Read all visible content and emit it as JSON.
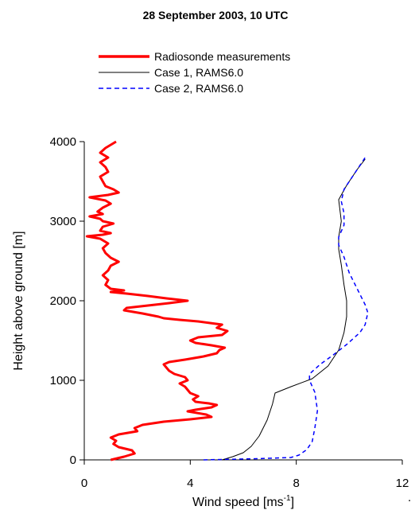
{
  "chart_data": {
    "type": "line",
    "title": "28 September 2003, 10 UTC",
    "xlabel": "Wind speed [ms",
    "xlabel_sup": "-1",
    "xlabel_end": "]",
    "ylabel": "Height above ground [m]",
    "xlim": [
      0,
      12
    ],
    "ylim": [
      0,
      4000
    ],
    "x_ticks": [
      "0",
      "4",
      "8",
      "12"
    ],
    "y_ticks": [
      "0",
      "1000",
      "2000",
      "3000",
      "4000"
    ],
    "grid": false,
    "legend_placement": "top-center",
    "trailing_mark": ".",
    "series": [
      {
        "name": "Radiosonde measurements",
        "color": "#ff0000",
        "style": "solid-thick",
        "points": [
          [
            1.0,
            0
          ],
          [
            1.5,
            40
          ],
          [
            1.9,
            80
          ],
          [
            1.8,
            120
          ],
          [
            1.3,
            160
          ],
          [
            1.1,
            200
          ],
          [
            1.2,
            240
          ],
          [
            1.0,
            280
          ],
          [
            1.3,
            320
          ],
          [
            2.0,
            360
          ],
          [
            1.9,
            400
          ],
          [
            2.2,
            440
          ],
          [
            3.0,
            480
          ],
          [
            4.0,
            510
          ],
          [
            4.8,
            540
          ],
          [
            4.6,
            570
          ],
          [
            3.9,
            610
          ],
          [
            4.2,
            630
          ],
          [
            4.8,
            660
          ],
          [
            5.0,
            690
          ],
          [
            4.7,
            710
          ],
          [
            4.2,
            730
          ],
          [
            4.1,
            760
          ],
          [
            4.3,
            800
          ],
          [
            4.0,
            840
          ],
          [
            3.9,
            880
          ],
          [
            3.8,
            920
          ],
          [
            3.6,
            960
          ],
          [
            3.9,
            1000
          ],
          [
            3.8,
            1040
          ],
          [
            3.4,
            1080
          ],
          [
            3.2,
            1120
          ],
          [
            3.1,
            1160
          ],
          [
            3.0,
            1200
          ],
          [
            3.2,
            1230
          ],
          [
            3.8,
            1260
          ],
          [
            4.5,
            1300
          ],
          [
            5.0,
            1340
          ],
          [
            5.1,
            1380
          ],
          [
            5.3,
            1410
          ],
          [
            4.8,
            1440
          ],
          [
            4.2,
            1470
          ],
          [
            4.0,
            1500
          ],
          [
            4.3,
            1540
          ],
          [
            5.2,
            1570
          ],
          [
            5.4,
            1620
          ],
          [
            5.0,
            1660
          ],
          [
            5.2,
            1700
          ],
          [
            4.3,
            1740
          ],
          [
            3.6,
            1760
          ],
          [
            3.0,
            1780
          ],
          [
            2.8,
            1800
          ],
          [
            2.2,
            1840
          ],
          [
            1.5,
            1880
          ],
          [
            1.6,
            1910
          ],
          [
            2.4,
            1940
          ],
          [
            3.2,
            1970
          ],
          [
            3.9,
            2000
          ],
          [
            3.1,
            2030
          ],
          [
            2.4,
            2060
          ],
          [
            1.6,
            2090
          ],
          [
            1.0,
            2110
          ],
          [
            1.5,
            2130
          ],
          [
            1.0,
            2150
          ],
          [
            0.8,
            2200
          ],
          [
            0.9,
            2260
          ],
          [
            0.7,
            2320
          ],
          [
            0.9,
            2380
          ],
          [
            1.0,
            2440
          ],
          [
            1.3,
            2490
          ],
          [
            1.0,
            2540
          ],
          [
            0.8,
            2600
          ],
          [
            0.7,
            2660
          ],
          [
            0.9,
            2720
          ],
          [
            0.6,
            2780
          ],
          [
            0.1,
            2810
          ],
          [
            0.7,
            2830
          ],
          [
            1.0,
            2850
          ],
          [
            0.6,
            2880
          ],
          [
            0.7,
            2930
          ],
          [
            1.1,
            2970
          ],
          [
            0.7,
            3000
          ],
          [
            0.6,
            3030
          ],
          [
            0.2,
            3060
          ],
          [
            0.7,
            3090
          ],
          [
            0.5,
            3120
          ],
          [
            0.7,
            3170
          ],
          [
            1.0,
            3220
          ],
          [
            0.8,
            3260
          ],
          [
            0.2,
            3300
          ],
          [
            0.9,
            3330
          ],
          [
            1.3,
            3360
          ],
          [
            1.1,
            3400
          ],
          [
            0.8,
            3440
          ],
          [
            0.7,
            3500
          ],
          [
            0.6,
            3560
          ],
          [
            0.9,
            3620
          ],
          [
            0.8,
            3680
          ],
          [
            0.6,
            3740
          ],
          [
            0.9,
            3800
          ],
          [
            0.6,
            3860
          ],
          [
            0.8,
            3920
          ],
          [
            1.1,
            3980
          ],
          [
            1.2,
            4000
          ]
        ]
      },
      {
        "name": "Case 1, RAMS6.0",
        "color": "#000000",
        "style": "solid-thin",
        "points": [
          [
            5.2,
            0
          ],
          [
            5.6,
            40
          ],
          [
            6.0,
            90
          ],
          [
            6.3,
            170
          ],
          [
            6.6,
            300
          ],
          [
            6.9,
            500
          ],
          [
            7.1,
            700
          ],
          [
            7.2,
            840
          ],
          [
            7.8,
            920
          ],
          [
            8.6,
            1020
          ],
          [
            9.2,
            1180
          ],
          [
            9.6,
            1380
          ],
          [
            9.8,
            1600
          ],
          [
            9.9,
            1800
          ],
          [
            9.9,
            2000
          ],
          [
            9.8,
            2200
          ],
          [
            9.7,
            2450
          ],
          [
            9.6,
            2650
          ],
          [
            9.6,
            2800
          ],
          [
            9.7,
            3000
          ],
          [
            9.6,
            3270
          ],
          [
            9.9,
            3450
          ],
          [
            10.3,
            3650
          ],
          [
            10.6,
            3780
          ]
        ]
      },
      {
        "name": "Case 2, RAMS6.0",
        "color": "#0000ff",
        "style": "dashed",
        "points": [
          [
            4.5,
            0
          ],
          [
            6.5,
            15
          ],
          [
            7.8,
            30
          ],
          [
            8.1,
            60
          ],
          [
            8.4,
            130
          ],
          [
            8.6,
            230
          ],
          [
            8.7,
            400
          ],
          [
            8.8,
            620
          ],
          [
            8.7,
            850
          ],
          [
            8.5,
            1000
          ],
          [
            8.5,
            1080
          ],
          [
            8.9,
            1200
          ],
          [
            9.4,
            1320
          ],
          [
            9.9,
            1450
          ],
          [
            10.4,
            1600
          ],
          [
            10.6,
            1700
          ],
          [
            10.7,
            1850
          ],
          [
            10.6,
            1950
          ],
          [
            10.3,
            2150
          ],
          [
            10.0,
            2350
          ],
          [
            9.8,
            2550
          ],
          [
            9.6,
            2700
          ],
          [
            9.6,
            2800
          ],
          [
            9.8,
            2950
          ],
          [
            9.8,
            3100
          ],
          [
            9.7,
            3250
          ],
          [
            9.8,
            3400
          ],
          [
            10.2,
            3600
          ],
          [
            10.6,
            3800
          ]
        ]
      }
    ]
  }
}
